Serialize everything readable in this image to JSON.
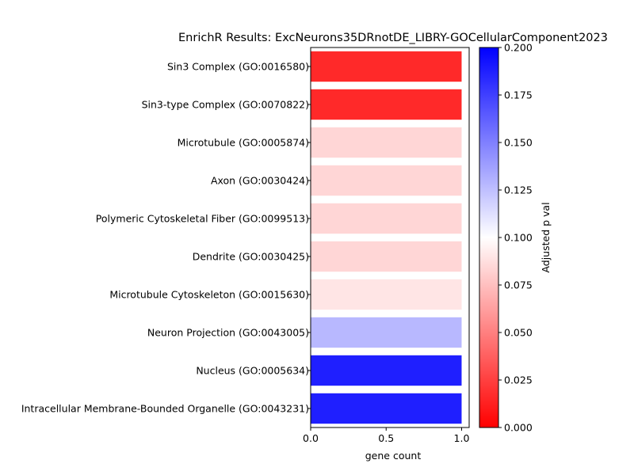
{
  "chart_data": {
    "type": "bar",
    "orientation": "horizontal",
    "title": "EnrichR Results: ExcNeurons35DRnotDE_LIBRY-GOCellularComponent2023",
    "xlabel": "gene count",
    "ylabel": "",
    "xlim": [
      0,
      1.05
    ],
    "x_ticks": [
      "0.0",
      "0.5",
      "1.0"
    ],
    "x_tick_values": [
      0.0,
      0.5,
      1.0
    ],
    "grid": false,
    "categories": [
      "Sin3 Complex (GO:0016580)",
      "Sin3-type Complex (GO:0070822)",
      "Microtubule (GO:0005874)",
      "Axon (GO:0030424)",
      "Polymeric Cytoskeletal Fiber (GO:0099513)",
      "Dendrite (GO:0030425)",
      "Microtubule Cytoskeleton (GO:0015630)",
      "Neuron Projection (GO:0043005)",
      "Nucleus (GO:0005634)",
      "Intracellular Membrane-Bounded Organelle (GO:0043231)"
    ],
    "values": [
      1,
      1,
      1,
      1,
      1,
      1,
      1,
      1,
      1,
      1
    ],
    "adjusted_p_values": [
      0.016,
      0.016,
      0.084,
      0.084,
      0.084,
      0.084,
      0.09,
      0.128,
      0.188,
      0.188
    ],
    "colorbar": {
      "label": "Adjusted p val",
      "range": [
        0,
        0.2
      ],
      "tick_values": [
        0.0,
        0.025,
        0.05,
        0.075,
        0.1,
        0.125,
        0.15,
        0.175,
        0.2
      ],
      "tick_labels": [
        "0.000",
        "0.025",
        "0.050",
        "0.075",
        "0.100",
        "0.125",
        "0.150",
        "0.175",
        "0.200"
      ],
      "colormap": "bwr_r",
      "colors": {
        "low": "#ff0000",
        "mid": "#ffffff",
        "high": "#0000ff"
      }
    }
  }
}
